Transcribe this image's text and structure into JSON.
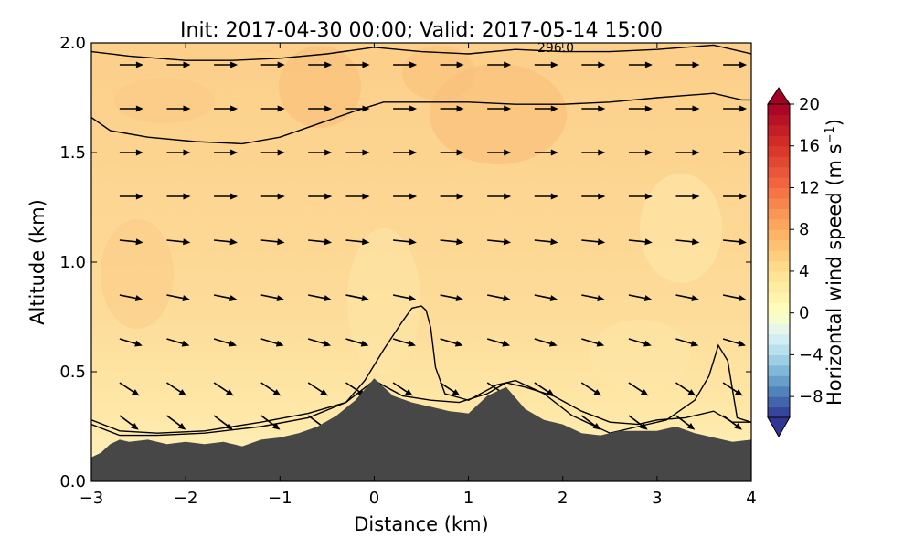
{
  "chart_data": {
    "type": "contour-vector-cross-section",
    "title": "Init: 2017-04-30 00:00; Valid: 2017-05-14 15:00",
    "xlabel": "Distance (km)",
    "ylabel": "Altitude (km)",
    "xlim": [
      -3,
      4
    ],
    "ylim": [
      0.0,
      2.0
    ],
    "xticks": [
      -3,
      -2,
      -1,
      0,
      1,
      2,
      3,
      4
    ],
    "xtick_labels": [
      "−3",
      "−2",
      "−1",
      "0",
      "1",
      "2",
      "3",
      "4"
    ],
    "yticks": [
      0.0,
      0.5,
      1.0,
      1.5,
      2.0
    ],
    "ytick_labels": [
      "0.0",
      "0.5",
      "1.0",
      "1.5",
      "2.0"
    ],
    "grid": false,
    "colorbar": {
      "label": "Horizontal wind speed (m s⁻¹)",
      "label_main": "Horizontal wind speed (m s",
      "label_exp": "−1",
      "label_close": ")",
      "range": [
        -10,
        20
      ],
      "ticks": [
        -8,
        -4,
        0,
        4,
        8,
        12,
        16,
        20
      ],
      "tick_labels": [
        "−8",
        "−4",
        "0",
        "4",
        "8",
        "12",
        "16",
        "20"
      ],
      "extend": "both",
      "colormap": "RdYlBu_r",
      "colors": [
        "#313695",
        "#4575b4",
        "#74add1",
        "#abd9e9",
        "#e0f3f8",
        "#ffffbf",
        "#fee090",
        "#fdae61",
        "#f46d43",
        "#d73027",
        "#a50026"
      ]
    },
    "terrain": {
      "color": "#474747",
      "x": [
        -3.0,
        -2.9,
        -2.8,
        -2.7,
        -2.6,
        -2.4,
        -2.2,
        -2.0,
        -1.8,
        -1.6,
        -1.4,
        -1.2,
        -1.0,
        -0.8,
        -0.6,
        -0.4,
        -0.2,
        0.0,
        0.2,
        0.4,
        0.6,
        0.8,
        1.0,
        1.2,
        1.4,
        1.6,
        1.8,
        2.0,
        2.2,
        2.4,
        2.6,
        2.8,
        3.0,
        3.2,
        3.4,
        3.6,
        3.8,
        4.0
      ],
      "z": [
        0.11,
        0.13,
        0.17,
        0.19,
        0.18,
        0.19,
        0.17,
        0.18,
        0.17,
        0.18,
        0.16,
        0.19,
        0.2,
        0.22,
        0.25,
        0.3,
        0.37,
        0.47,
        0.39,
        0.36,
        0.34,
        0.32,
        0.31,
        0.39,
        0.43,
        0.33,
        0.28,
        0.26,
        0.22,
        0.21,
        0.23,
        0.23,
        0.23,
        0.25,
        0.22,
        0.2,
        0.18,
        0.19
      ]
    },
    "isentropes": {
      "units": "K",
      "labelled_value": "296.0",
      "lines": [
        {
          "x": [
            -3.0,
            -2.7,
            -2.3,
            -1.8,
            -1.2,
            -0.7,
            -0.3,
            -0.1,
            0.1,
            0.3,
            0.4,
            0.5,
            0.55,
            0.6,
            0.65,
            0.75,
            1.0,
            1.3,
            1.5,
            1.8,
            2.1,
            2.5,
            2.8,
            3.1,
            3.4,
            3.55,
            3.65,
            3.75,
            3.85,
            4.0
          ],
          "z": [
            0.26,
            0.21,
            0.21,
            0.22,
            0.25,
            0.29,
            0.36,
            0.46,
            0.6,
            0.73,
            0.79,
            0.8,
            0.78,
            0.7,
            0.52,
            0.4,
            0.37,
            0.44,
            0.46,
            0.4,
            0.3,
            0.22,
            0.25,
            0.28,
            0.37,
            0.48,
            0.62,
            0.55,
            0.29,
            0.27
          ]
        },
        {
          "x": [
            -3.0,
            -2.7,
            -2.3,
            -1.8,
            -1.2,
            -0.7,
            -0.3,
            0.0,
            0.3,
            0.6,
            0.9,
            1.2,
            1.4,
            1.6,
            1.9,
            2.2,
            2.5,
            2.8,
            3.0,
            3.3,
            3.6,
            3.8,
            4.0
          ],
          "z": [
            0.28,
            0.23,
            0.22,
            0.23,
            0.27,
            0.31,
            0.36,
            0.46,
            0.39,
            0.37,
            0.36,
            0.4,
            0.45,
            0.43,
            0.39,
            0.32,
            0.27,
            0.26,
            0.28,
            0.29,
            0.32,
            0.27,
            0.27
          ]
        },
        {
          "x": [
            -3.0,
            -2.8,
            -2.4,
            -1.9,
            -1.4,
            -1.0,
            -0.6,
            -0.2,
            0.1,
            0.5,
            1.0,
            1.5,
            2.0,
            2.5,
            3.0,
            3.3,
            3.6,
            3.9,
            4.0
          ],
          "z": [
            1.66,
            1.6,
            1.57,
            1.55,
            1.54,
            1.57,
            1.63,
            1.69,
            1.73,
            1.73,
            1.73,
            1.72,
            1.72,
            1.73,
            1.75,
            1.76,
            1.77,
            1.74,
            1.74
          ]
        },
        {
          "x": [
            -3.0,
            -2.6,
            -2.0,
            -1.5,
            -1.0,
            -0.5,
            0.0,
            0.5,
            1.0,
            1.5,
            2.0,
            2.5,
            3.0,
            3.3,
            3.6,
            3.9,
            4.0
          ],
          "z": [
            1.96,
            1.94,
            1.92,
            1.92,
            1.93,
            1.95,
            1.98,
            1.96,
            1.95,
            1.97,
            1.96,
            1.96,
            1.97,
            1.98,
            1.99,
            1.96,
            1.95
          ]
        }
      ]
    },
    "wind_vectors": {
      "x_positions": [
        -2.7,
        -2.2,
        -1.7,
        -1.2,
        -0.7,
        -0.3,
        0.2,
        0.7,
        1.2,
        1.7,
        2.2,
        2.7,
        3.2,
        3.7
      ],
      "levels": [
        {
          "z": 1.9,
          "u": 1,
          "w": 0
        },
        {
          "z": 1.7,
          "u": 1,
          "w": 0
        },
        {
          "z": 1.5,
          "u": 1,
          "w": 0
        },
        {
          "z": 1.3,
          "u": 1,
          "w": 0
        },
        {
          "z": 1.1,
          "u": 1,
          "w": -0.1
        },
        {
          "z": 0.85,
          "u": 1,
          "w": -0.2
        },
        {
          "z": 0.65,
          "u": 1,
          "w": -0.3
        },
        {
          "z": 0.45,
          "u": 0.6,
          "w": -0.4
        },
        {
          "z": 0.3,
          "u": 0.4,
          "w": -0.3
        }
      ]
    }
  }
}
